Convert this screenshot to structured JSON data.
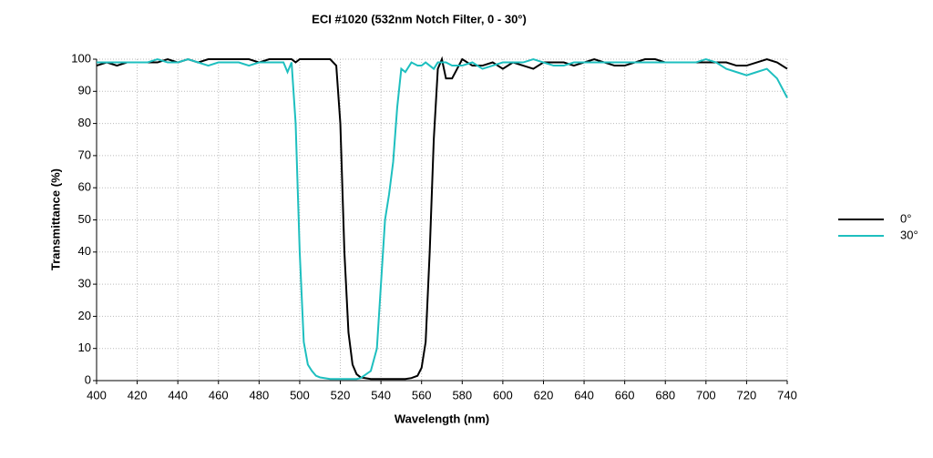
{
  "chart_data": {
    "type": "line",
    "title": "ECI #1020 (532nm Notch Filter, 0 - 30°)",
    "x_label": "Wavelength (nm)",
    "y_label": "Transmittance (%)",
    "x": [
      400,
      405,
      410,
      415,
      420,
      425,
      430,
      435,
      440,
      445,
      450,
      455,
      460,
      465,
      470,
      475,
      480,
      485,
      490,
      492,
      494,
      496,
      498,
      500,
      502,
      504,
      506,
      508,
      510,
      515,
      518,
      520,
      522,
      524,
      526,
      528,
      530,
      535,
      538,
      540,
      542,
      544,
      546,
      548,
      550,
      552,
      555,
      558,
      560,
      562,
      564,
      566,
      568,
      570,
      572,
      575,
      580,
      585,
      590,
      595,
      600,
      605,
      610,
      615,
      620,
      625,
      630,
      635,
      640,
      645,
      650,
      655,
      660,
      665,
      670,
      675,
      680,
      685,
      690,
      695,
      700,
      705,
      710,
      715,
      720,
      725,
      730,
      735,
      740
    ],
    "series": [
      {
        "name": "0°",
        "color": "#000000",
        "values": [
          98,
          99,
          98,
          99,
          99,
          99,
          99,
          100,
          99,
          100,
          99,
          100,
          100,
          100,
          100,
          100,
          99,
          100,
          100,
          100,
          100,
          100,
          99,
          100,
          100,
          100,
          100,
          100,
          100,
          100,
          98,
          80,
          40,
          15,
          5,
          2,
          1,
          0.5,
          0.5,
          0.5,
          0.5,
          0.5,
          0.5,
          0.5,
          0.5,
          0.5,
          0.8,
          1.5,
          4,
          12,
          40,
          75,
          97,
          100,
          94,
          94,
          100,
          98,
          98,
          99,
          97,
          99,
          98,
          97,
          99,
          99,
          99,
          98,
          99,
          100,
          99,
          98,
          98,
          99,
          100,
          100,
          99,
          99,
          99,
          99,
          99,
          99,
          99,
          98,
          98,
          99,
          100,
          99,
          97
        ]
      },
      {
        "name": "30°",
        "color": "#1ebfbf",
        "values": [
          99,
          99,
          99,
          99,
          99,
          99,
          100,
          99,
          99,
          100,
          99,
          98,
          99,
          99,
          99,
          98,
          99,
          99,
          99,
          99,
          96,
          99,
          80,
          40,
          12,
          5,
          3,
          1.5,
          1,
          0.5,
          0.5,
          0.5,
          0.5,
          0.5,
          0.5,
          0.5,
          0.8,
          3,
          10,
          30,
          50,
          58,
          68,
          85,
          97,
          96,
          99,
          98,
          98,
          99,
          98,
          97,
          99,
          99,
          99,
          98,
          98,
          99,
          97,
          98,
          99,
          99,
          99,
          100,
          99,
          98,
          98,
          99,
          99,
          99,
          99,
          99,
          99,
          99,
          99,
          99,
          99,
          99,
          99,
          99,
          100,
          99,
          97,
          96,
          95,
          96,
          97,
          94,
          88
        ]
      }
    ],
    "xlim": [
      400,
      740
    ],
    "xticks": [
      400,
      420,
      440,
      460,
      480,
      500,
      520,
      540,
      560,
      580,
      600,
      620,
      640,
      660,
      680,
      700,
      720,
      740
    ],
    "ylim": [
      0,
      100
    ],
    "yticks": [
      0,
      10,
      20,
      30,
      40,
      50,
      60,
      70,
      80,
      90,
      100
    ],
    "grid": true,
    "legend": "right"
  }
}
